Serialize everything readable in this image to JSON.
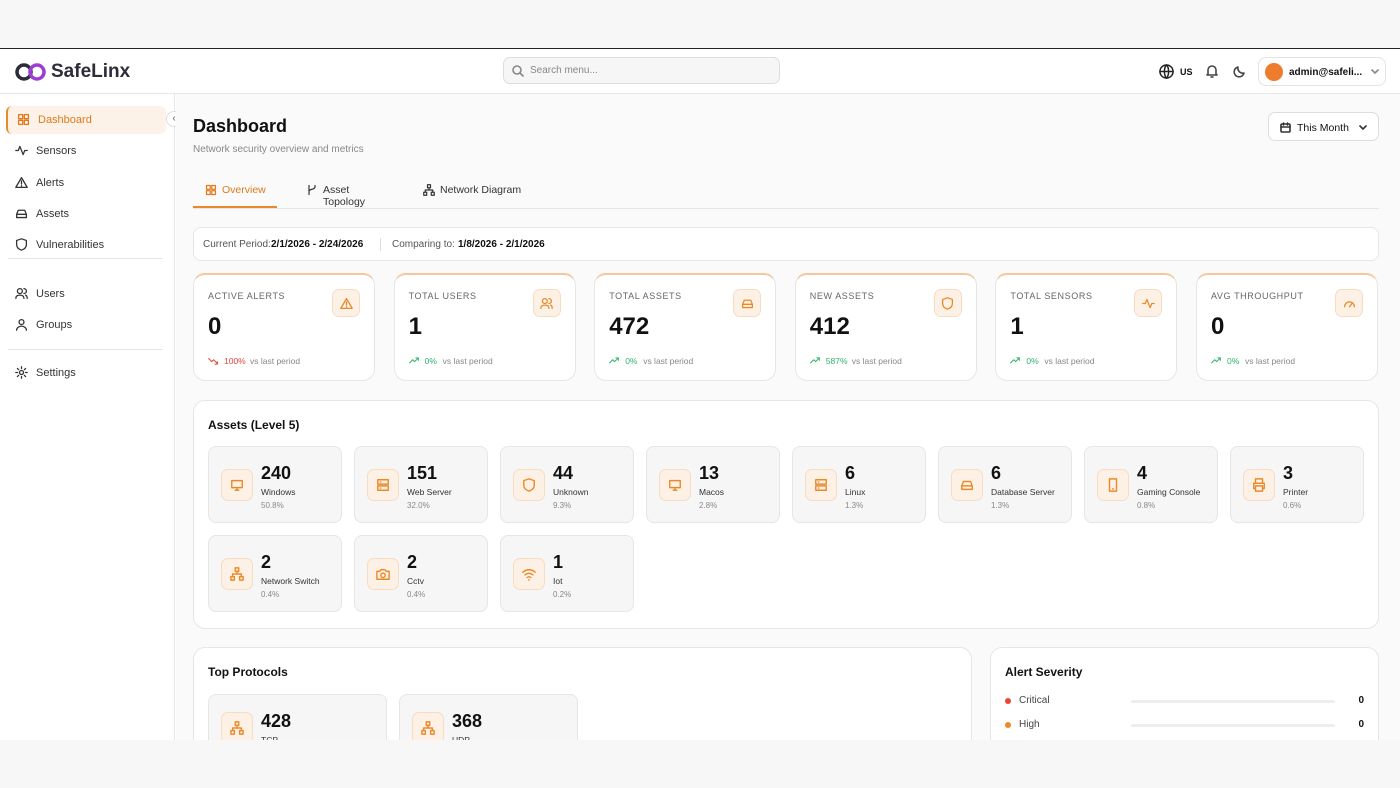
{
  "header": {
    "logo": "SafeLinx",
    "search_placeholder": "Search menu...",
    "locale": "US",
    "user": "admin@safeli..."
  },
  "sidebar": {
    "items": [
      "Dashboard",
      "Sensors",
      "Alerts",
      "Assets",
      "Vulnerabilities",
      "Users",
      "Groups",
      "Settings"
    ]
  },
  "page": {
    "title": "Dashboard",
    "subtitle": "Network security overview and metrics",
    "range": "This Month"
  },
  "tabs": [
    "Overview",
    "Asset Topology",
    "Network Diagram"
  ],
  "period": {
    "current_label": "Current Period:",
    "current": "2/1/2026 - 2/24/2026",
    "compare_label": "Comparing to:",
    "compare": "1/8/2026 - 2/1/2026"
  },
  "stats": [
    {
      "label": "ACTIVE ALERTS",
      "value": 0,
      "change": "100%",
      "trend": "down",
      "note": "vs last period"
    },
    {
      "label": "TOTAL USERS",
      "value": 1,
      "change": "0%",
      "trend": "up",
      "note": "vs last period"
    },
    {
      "label": "TOTAL ASSETS",
      "value": 472,
      "change": "0%",
      "trend": "up",
      "note": "vs last period"
    },
    {
      "label": "NEW ASSETS",
      "value": 412,
      "change": "587%",
      "trend": "up",
      "note": "vs last period"
    },
    {
      "label": "TOTAL SENSORS",
      "value": 1,
      "change": "0%",
      "trend": "up",
      "note": "vs last period"
    },
    {
      "label": "AVG THROUGHPUT",
      "value": 0,
      "change": "0%",
      "trend": "up",
      "note": "vs last period"
    }
  ],
  "assets": {
    "title": "Assets (Level 5)",
    "items": [
      {
        "count": 240,
        "name": "Windows",
        "share": "50.8%"
      },
      {
        "count": 151,
        "name": "Web Server",
        "share": "32.0%"
      },
      {
        "count": 44,
        "name": "Unknown",
        "share": "9.3%"
      },
      {
        "count": 13,
        "name": "Macos",
        "share": "2.8%"
      },
      {
        "count": 6,
        "name": "Linux",
        "share": "1.3%"
      },
      {
        "count": 6,
        "name": "Database Server",
        "share": "1.3%"
      },
      {
        "count": 4,
        "name": "Gaming Console",
        "share": "0.8%"
      },
      {
        "count": 3,
        "name": "Printer",
        "share": "0.6%"
      },
      {
        "count": 2,
        "name": "Network Switch",
        "share": "0.4%"
      },
      {
        "count": 2,
        "name": "Cctv",
        "share": "0.4%"
      },
      {
        "count": 1,
        "name": "Iot",
        "share": "0.2%"
      }
    ]
  },
  "protocols": {
    "title": "Top Protocols",
    "items": [
      {
        "count": 428,
        "name": "TCP"
      },
      {
        "count": 368,
        "name": "UDP"
      }
    ]
  },
  "severity": {
    "title": "Alert Severity",
    "items": [
      {
        "name": "Critical",
        "count": 0,
        "color": "#e8483a"
      },
      {
        "name": "High",
        "count": 0,
        "color": "#f08a24"
      }
    ]
  }
}
